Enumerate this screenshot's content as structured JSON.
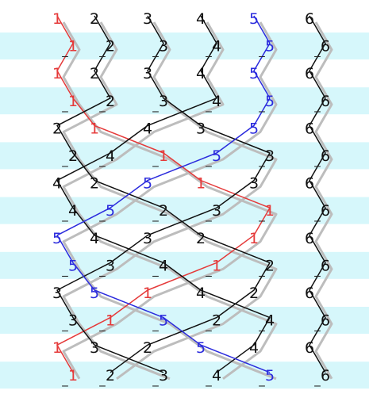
{
  "diagram": {
    "bands": {
      "color": "#d6f7fb",
      "rows": [
        1,
        3,
        5,
        7,
        9,
        11,
        13
      ]
    },
    "colors": {
      "line1": "#e53a3a",
      "line5": "#2b2bdd",
      "other": "#111111",
      "guide": "#bdbdbd",
      "dash": "#222222"
    },
    "rows": [
      [
        1,
        2,
        3,
        4,
        5,
        6
      ],
      [
        1,
        2,
        3,
        4,
        5,
        6
      ],
      [
        1,
        2,
        3,
        4,
        5,
        6
      ],
      [
        1,
        2,
        3,
        4,
        5,
        6
      ],
      [
        2,
        1,
        4,
        3,
        5,
        6
      ],
      [
        2,
        4,
        1,
        5,
        3,
        6
      ],
      [
        4,
        2,
        5,
        1,
        3,
        6
      ],
      [
        4,
        5,
        2,
        3,
        1,
        6
      ],
      [
        5,
        4,
        3,
        2,
        1,
        6
      ],
      [
        5,
        3,
        4,
        1,
        2,
        6
      ],
      [
        3,
        5,
        1,
        4,
        2,
        6
      ],
      [
        3,
        1,
        5,
        2,
        4,
        6
      ],
      [
        1,
        3,
        2,
        5,
        4,
        6
      ],
      [
        1,
        2,
        3,
        4,
        5,
        6
      ]
    ],
    "dash_char": "_"
  }
}
